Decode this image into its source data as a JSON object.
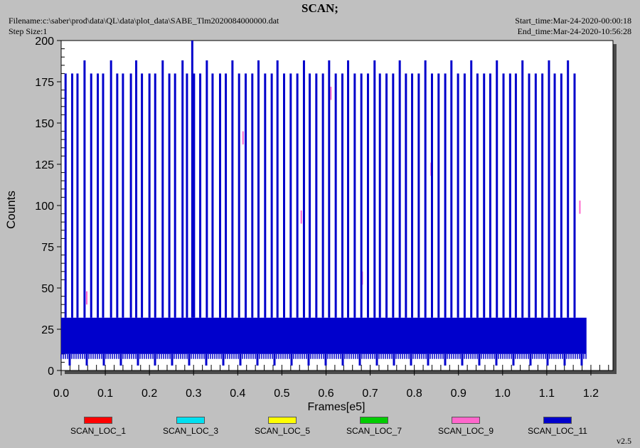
{
  "header": {
    "title": "SCAN;",
    "filename": "Filename:c:\\saber\\prod\\data\\QL\\data\\plot_data\\SABE_Tlm2020084000000.dat",
    "step_size": "Step Size:1",
    "start_time": "Start_time:Mar-24-2020-00:00:18",
    "end_time": "End_time:Mar-24-2020-10:56:28"
  },
  "footer": {
    "version": "v2.5"
  },
  "chart_data": {
    "type": "line",
    "title": "SCAN;",
    "xlabel": "Frames[e5]",
    "ylabel": "Counts",
    "xlim": [
      0.0,
      1.25
    ],
    "ylim": [
      0,
      200
    ],
    "xticks": [
      "0.0",
      "0.1",
      "0.2",
      "0.3",
      "0.4",
      "0.5",
      "0.6",
      "0.7",
      "0.8",
      "0.9",
      "1.0",
      "1.1",
      "1.2"
    ],
    "yticks": [
      "0",
      "25",
      "50",
      "75",
      "100",
      "125",
      "150",
      "175",
      "200"
    ],
    "legend_position": "bottom",
    "series": [
      {
        "name": "SCAN_LOC_1",
        "color": "#ff0000",
        "x_range": [
          0.0,
          1.19
        ],
        "y_band": [
          0,
          0
        ],
        "tall_x": [],
        "tall_y": []
      },
      {
        "name": "SCAN_LOC_3",
        "color": "#00e0f0",
        "x_range": [
          0.0,
          1.19
        ],
        "y_band": [
          0,
          0
        ],
        "tall_x": [],
        "tall_y": []
      },
      {
        "name": "SCAN_LOC_5",
        "color": "#ffff00",
        "x_range": [
          0.0,
          1.19
        ],
        "y_band": [
          0,
          0
        ],
        "tall_x": [],
        "tall_y": []
      },
      {
        "name": "SCAN_LOC_7",
        "color": "#00cc00",
        "x_range": [
          0.0,
          1.19
        ],
        "y_band": [
          0,
          0
        ],
        "tall_x": [],
        "tall_y": []
      },
      {
        "name": "SCAN_LOC_9",
        "color": "#ff66cc",
        "x_range": [
          0.0,
          1.19
        ],
        "y_band": [
          0,
          0
        ],
        "tall_x": [
          0.058,
          0.412,
          0.544,
          0.611,
          0.682,
          0.838,
          1.175
        ],
        "tall_y": [
          48,
          145,
          97,
          172,
          60,
          126,
          103
        ]
      },
      {
        "name": "SCAN_LOC_11",
        "color": "#0000cc",
        "x_range": [
          0.0,
          1.19
        ],
        "y_band": [
          10,
          32
        ],
        "y_low": 3,
        "tall_x": [
          0.01,
          0.025,
          0.037,
          0.053,
          0.068,
          0.083,
          0.095,
          0.113,
          0.127,
          0.14,
          0.158,
          0.17,
          0.183,
          0.2,
          0.213,
          0.23,
          0.245,
          0.258,
          0.275,
          0.285,
          0.297,
          0.301,
          0.315,
          0.33,
          0.343,
          0.36,
          0.373,
          0.388,
          0.403,
          0.418,
          0.433,
          0.447,
          0.462,
          0.477,
          0.49,
          0.505,
          0.52,
          0.535,
          0.55,
          0.563,
          0.578,
          0.593,
          0.607,
          0.622,
          0.637,
          0.65,
          0.665,
          0.68,
          0.695,
          0.71,
          0.722,
          0.737,
          0.752,
          0.767,
          0.781,
          0.795,
          0.81,
          0.825,
          0.84,
          0.855,
          0.87,
          0.884,
          0.899,
          0.914,
          0.929,
          0.943,
          0.958,
          0.972,
          0.987,
          1.002,
          1.017,
          1.03,
          1.045,
          1.06,
          1.075,
          1.09,
          1.105,
          1.118,
          1.133,
          1.148,
          1.163
        ],
        "tall_y": [
          180,
          180,
          180,
          188,
          180,
          180,
          180,
          188,
          180,
          180,
          180,
          188,
          180,
          180,
          180,
          188,
          180,
          180,
          188,
          180,
          200,
          180,
          180,
          188,
          180,
          180,
          180,
          188,
          180,
          180,
          180,
          188,
          180,
          180,
          188,
          180,
          180,
          180,
          188,
          180,
          180,
          180,
          188,
          180,
          180,
          188,
          180,
          180,
          180,
          188,
          180,
          180,
          180,
          188,
          180,
          180,
          180,
          188,
          180,
          180,
          180,
          188,
          180,
          180,
          188,
          180,
          180,
          180,
          188,
          180,
          180,
          180,
          188,
          180,
          180,
          180,
          188,
          180,
          180,
          188,
          180
        ]
      }
    ]
  }
}
